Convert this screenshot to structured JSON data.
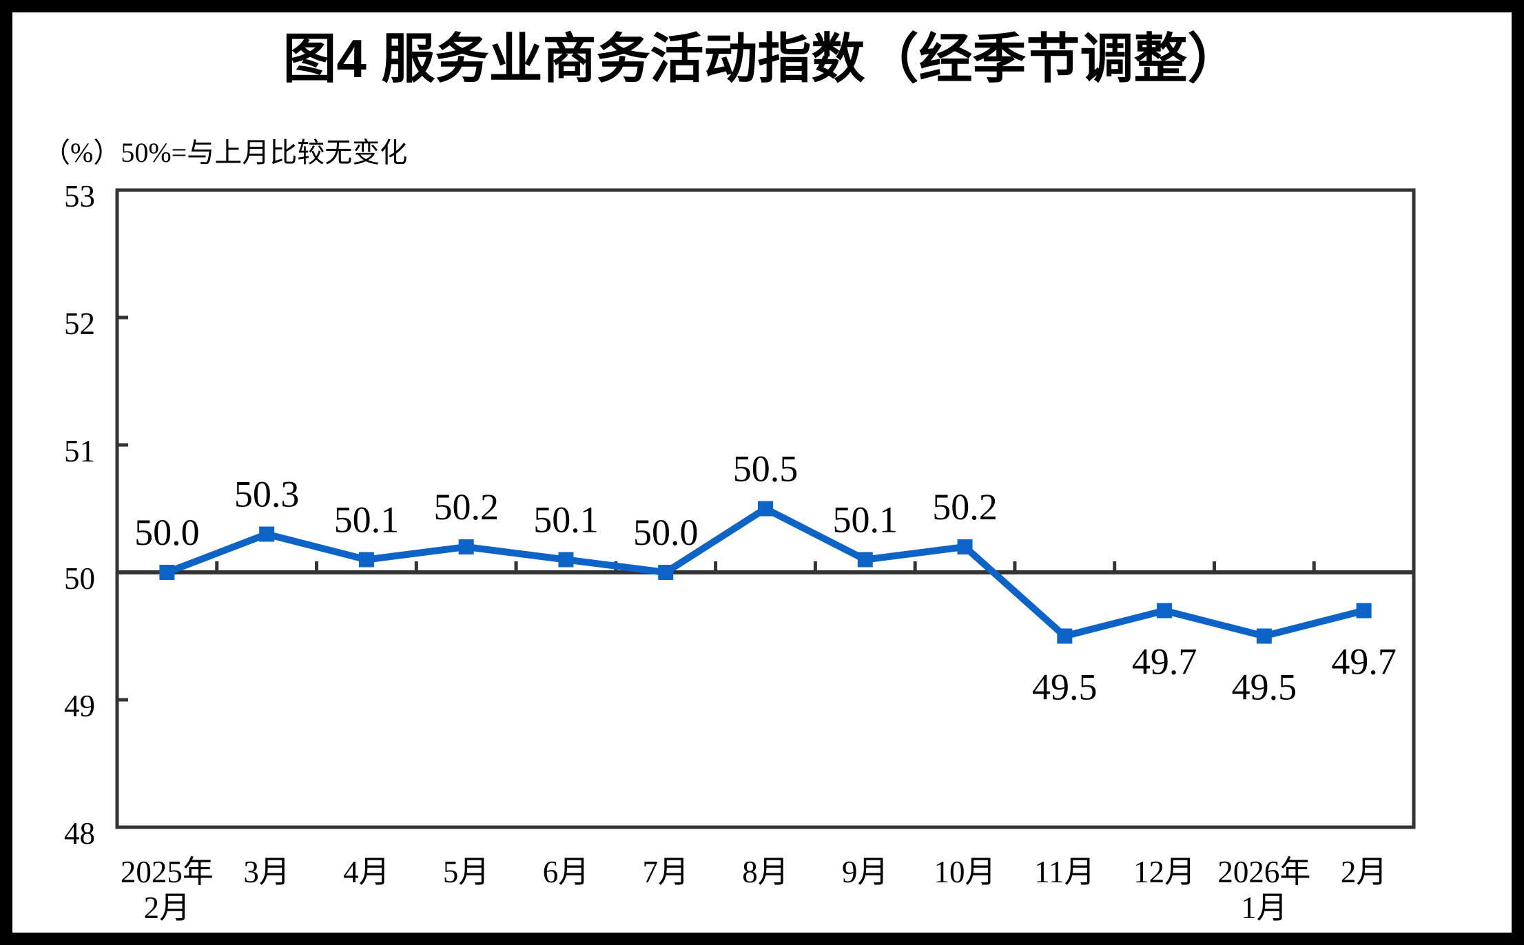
{
  "figure": {
    "title": "图4  服务业商务活动指数（经季节调整）",
    "unit_note": "（%）50%=与上月比较无变化"
  },
  "colors": {
    "line": "#0D64C6",
    "axis": "#333333",
    "text": "#000000",
    "background": "#FFFFFF",
    "border": "#000000"
  },
  "chart_data": {
    "type": "line",
    "title": "图4  服务业商务活动指数（经季节调整）",
    "ylabel_note": "（%）50%=与上月比较无变化",
    "categories": [
      "2025年\n2月",
      "3月",
      "4月",
      "5月",
      "6月",
      "7月",
      "8月",
      "9月",
      "10月",
      "11月",
      "12月",
      "2026年\n1月",
      "2月"
    ],
    "values": [
      50.0,
      50.3,
      50.1,
      50.2,
      50.1,
      50.0,
      50.5,
      50.1,
      50.2,
      49.5,
      49.7,
      49.5,
      49.7
    ],
    "point_labels": [
      "50.0",
      "50.3",
      "50.1",
      "50.2",
      "50.1",
      "50.0",
      "50.5",
      "50.1",
      "50.2",
      "49.5",
      "49.7",
      "49.5",
      "49.7"
    ],
    "label_positions": [
      "above",
      "above",
      "above",
      "above",
      "above",
      "above",
      "above",
      "above",
      "above",
      "below",
      "below",
      "below",
      "below"
    ],
    "ylim": [
      48,
      53
    ],
    "yticks": [
      48,
      49,
      50,
      51,
      52,
      53
    ],
    "ytick_labels": [
      "48",
      "49",
      "50",
      "51",
      "52",
      "53"
    ],
    "reference_line": 50,
    "grid": false,
    "legend": "none",
    "marker": "square"
  }
}
